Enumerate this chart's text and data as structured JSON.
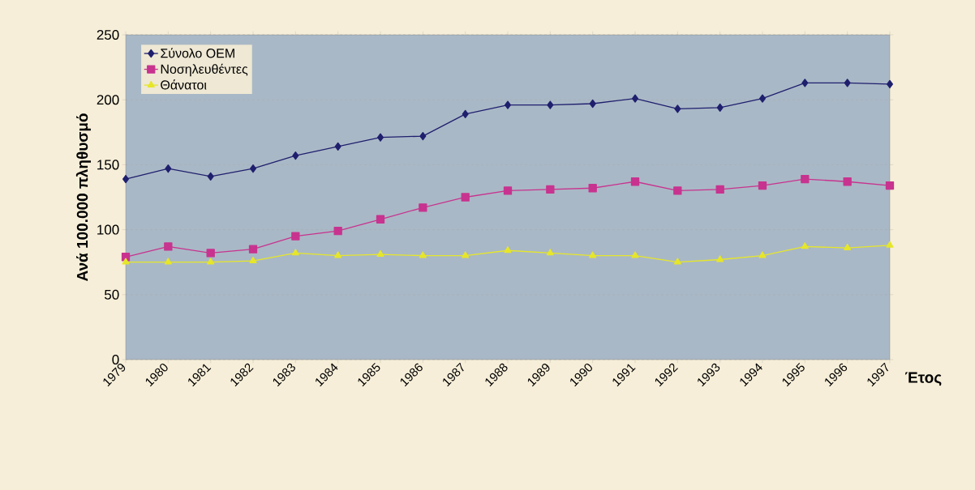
{
  "chart_data": {
    "type": "line",
    "xlabel": "Έτος",
    "ylabel": "Ανά 100.000 πληθυσμό",
    "categories": [
      "1979",
      "1980",
      "1981",
      "1982",
      "1983",
      "1984",
      "1985",
      "1986",
      "1987",
      "1988",
      "1989",
      "1990",
      "1991",
      "1992",
      "1993",
      "1994",
      "1995",
      "1996",
      "1997"
    ],
    "series": [
      {
        "name": "Σύνολο ΟΕΜ",
        "color": "#1f1f6e",
        "marker": "diamond",
        "values": [
          139,
          147,
          141,
          147,
          157,
          164,
          171,
          172,
          189,
          196,
          196,
          197,
          201,
          193,
          194,
          201,
          213,
          213,
          212
        ]
      },
      {
        "name": "Νοσηλευθέντες",
        "color": "#c8338f",
        "marker": "square",
        "values": [
          79,
          87,
          82,
          85,
          95,
          99,
          108,
          117,
          125,
          130,
          131,
          132,
          137,
          130,
          131,
          134,
          139,
          137,
          134
        ]
      },
      {
        "name": "Θάνατοι",
        "color": "#e6e62a",
        "marker": "triangle",
        "values": [
          75,
          75,
          75,
          76,
          82,
          80,
          81,
          80,
          80,
          84,
          82,
          80,
          80,
          75,
          77,
          80,
          87,
          86,
          88
        ]
      }
    ],
    "ylim": [
      0,
      250
    ],
    "yticks": [
      0,
      50,
      100,
      150,
      200,
      250
    ],
    "grid": "y",
    "legend": "top left"
  }
}
